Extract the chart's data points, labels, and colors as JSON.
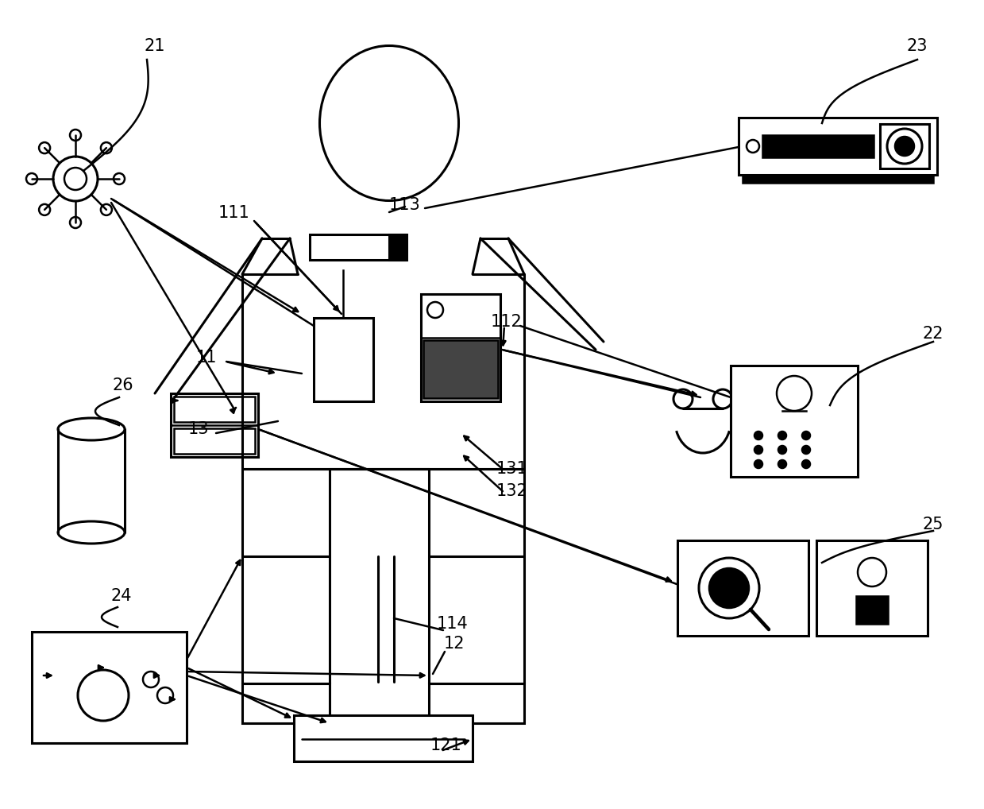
{
  "bg_color": "#ffffff",
  "lc": "#000000",
  "lw": 1.8,
  "lw2": 2.2,
  "fs": 15,
  "fig_w": 12.39,
  "fig_h": 10.18,
  "dpi": 100
}
